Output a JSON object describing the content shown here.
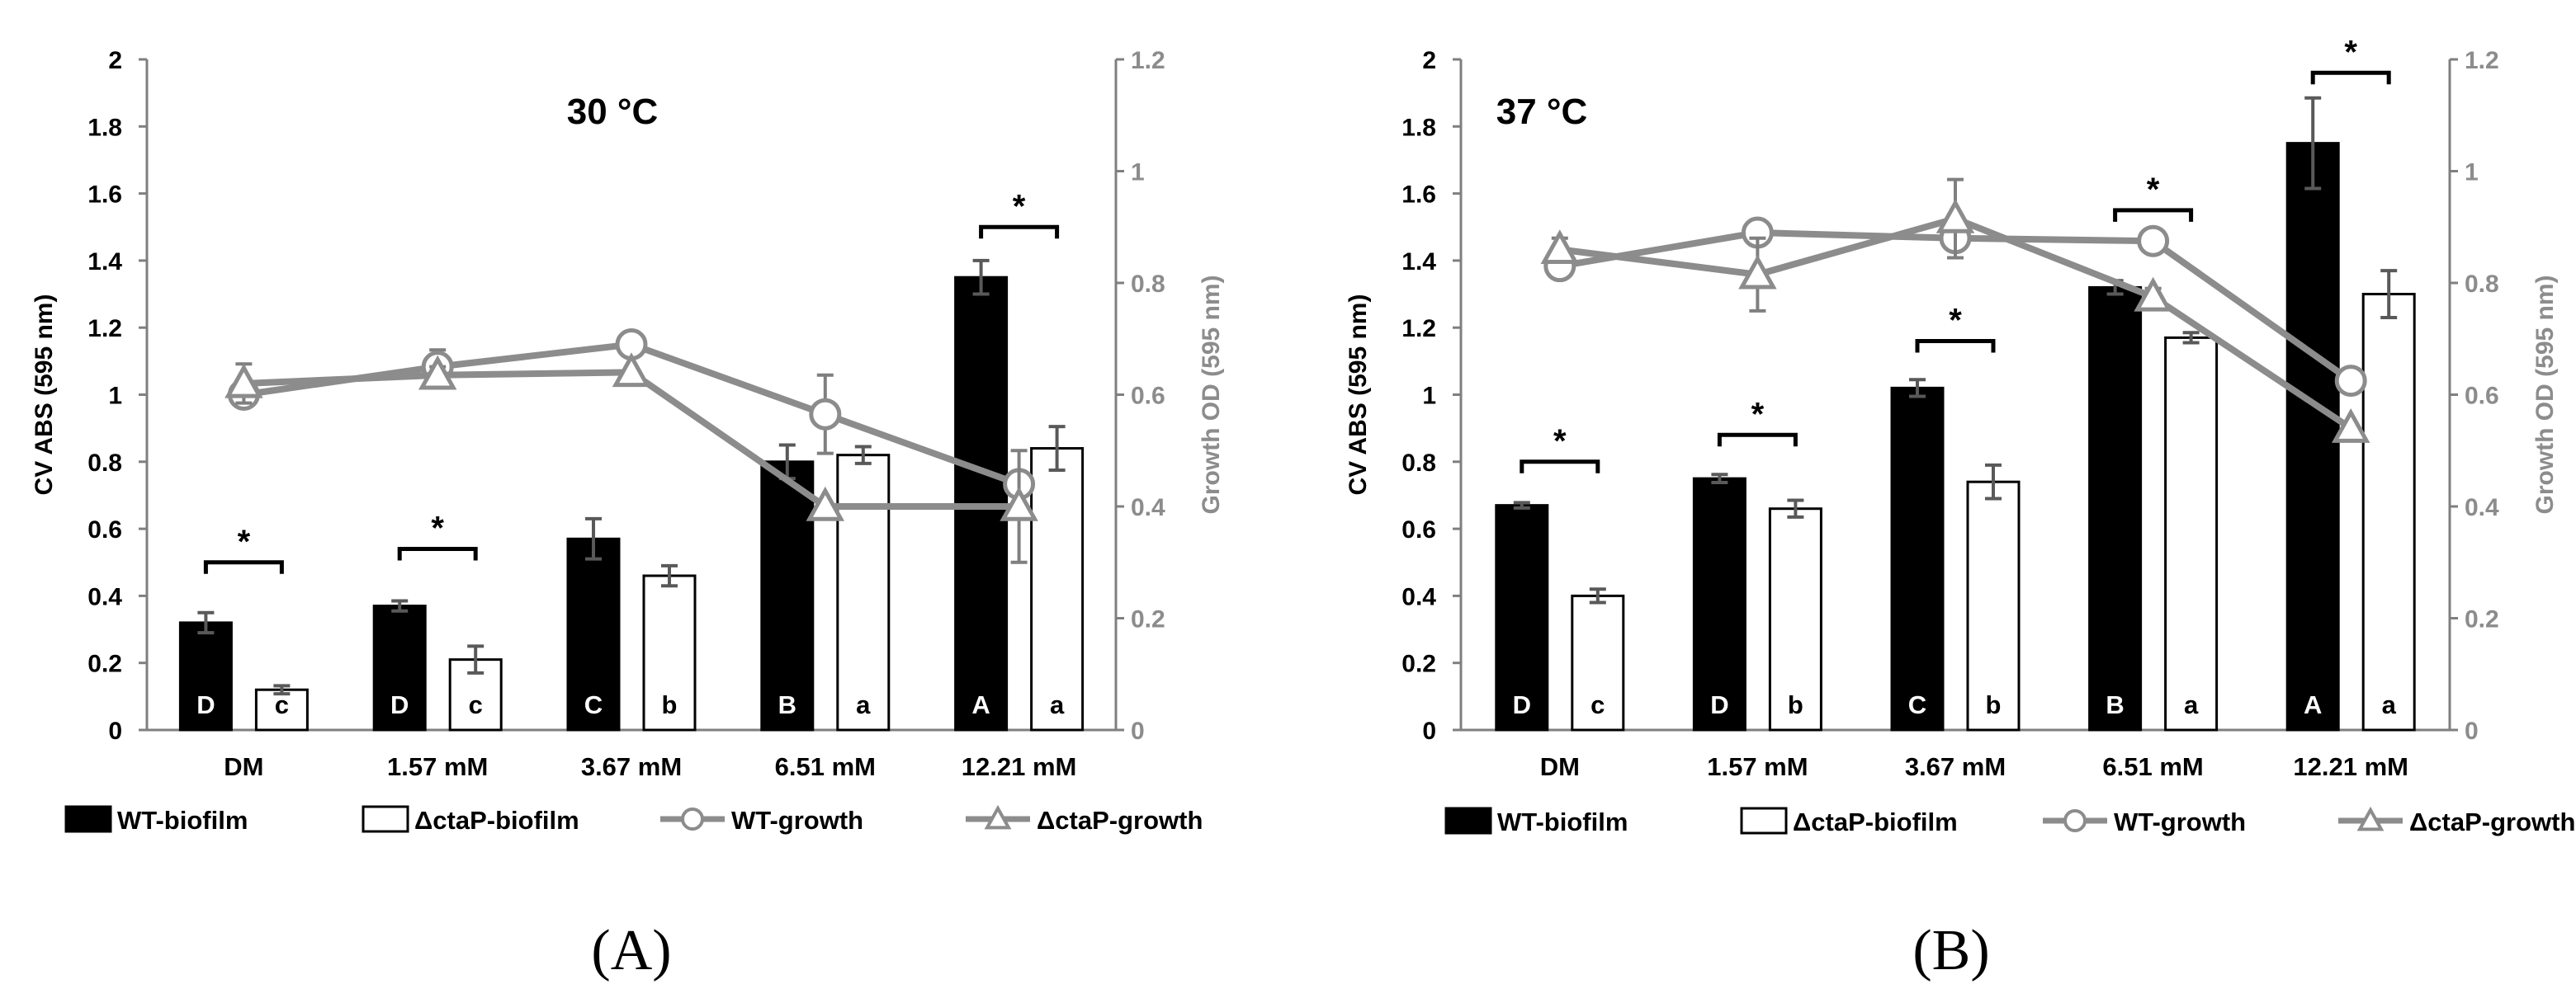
{
  "chart_data": [
    {
      "type": "bar",
      "panel_label": "(A)",
      "title": "30 °C",
      "categories": [
        "DM",
        "1.57 mM",
        "3.67 mM",
        "6.51 mM",
        "12.21 mM"
      ],
      "ylabel": "CV ABS (595 nm)",
      "ylim": [
        0,
        2
      ],
      "yticks": [
        "0",
        "0.2",
        "0.4",
        "0.6",
        "0.8",
        "1",
        "1.2",
        "1.4",
        "1.6",
        "1.8",
        "2"
      ],
      "y2label": "Growth OD (595 nm)",
      "y2lim": [
        0,
        1.2
      ],
      "y2ticks": [
        "0",
        "0.2",
        "0.4",
        "0.6",
        "0.8",
        "1",
        "1.2"
      ],
      "series": [
        {
          "name": "WT-biofilm",
          "kind": "bar",
          "axis": "left",
          "fill": "#000000",
          "values": [
            0.32,
            0.37,
            0.57,
            0.8,
            1.35
          ],
          "errors": [
            0.03,
            0.015,
            0.06,
            0.05,
            0.05
          ],
          "letters": [
            "D",
            "D",
            "C",
            "B",
            "A"
          ]
        },
        {
          "name": "ΔctaP-biofilm",
          "kind": "bar",
          "axis": "left",
          "fill": "#ffffff",
          "values": [
            0.12,
            0.21,
            0.46,
            0.82,
            0.84
          ],
          "errors": [
            0.012,
            0.04,
            0.03,
            0.025,
            0.065
          ],
          "letters": [
            "c",
            "c",
            "b",
            "a",
            "a"
          ]
        },
        {
          "name": "WT-growth",
          "kind": "line",
          "axis": "right",
          "marker": "circle",
          "values": [
            0.6,
            0.65,
            0.69,
            0.565,
            0.44
          ],
          "errors": [
            0.0,
            0.03,
            0.0,
            0.07,
            0.0
          ]
        },
        {
          "name": "ΔctaP-growth",
          "kind": "line",
          "axis": "right",
          "marker": "triangle",
          "values": [
            0.62,
            0.635,
            0.64,
            0.4,
            0.4
          ],
          "errors": [
            0.035,
            0.015,
            0.0,
            0.0,
            0.1
          ]
        }
      ],
      "significance": [
        {
          "category": "DM",
          "label": "*",
          "level": 0.5
        },
        {
          "category": "1.57 mM",
          "label": "*",
          "level": 0.54
        },
        {
          "category": "12.21 mM",
          "label": "*",
          "level": 1.5
        }
      ]
    },
    {
      "type": "bar",
      "panel_label": "(B)",
      "title": "37 °C",
      "categories": [
        "DM",
        "1.57 mM",
        "3.67 mM",
        "6.51 mM",
        "12.21 mM"
      ],
      "ylabel": "CV ABS (595 nm)",
      "ylim": [
        0,
        2
      ],
      "yticks": [
        "0",
        "0.2",
        "0.4",
        "0.6",
        "0.8",
        "1",
        "1.2",
        "1.4",
        "1.6",
        "1.8",
        "2"
      ],
      "y2label": "Growth OD (595 nm)",
      "y2lim": [
        0,
        1.2
      ],
      "y2ticks": [
        "0",
        "0.2",
        "0.4",
        "0.6",
        "0.8",
        "1",
        "1.2"
      ],
      "series": [
        {
          "name": "WT-biofilm",
          "kind": "bar",
          "axis": "left",
          "fill": "#000000",
          "values": [
            0.67,
            0.75,
            1.02,
            1.32,
            1.75
          ],
          "errors": [
            0.008,
            0.012,
            0.025,
            0.02,
            0.135
          ],
          "letters": [
            "D",
            "D",
            "C",
            "B",
            "A"
          ]
        },
        {
          "name": "ΔctaP-biofilm",
          "kind": "bar",
          "axis": "left",
          "fill": "#ffffff",
          "values": [
            0.4,
            0.66,
            0.74,
            1.17,
            1.3
          ],
          "errors": [
            0.02,
            0.025,
            0.05,
            0.015,
            0.07
          ],
          "letters": [
            "c",
            "b",
            "b",
            "a",
            "a"
          ]
        },
        {
          "name": "WT-growth",
          "kind": "line",
          "axis": "right",
          "marker": "circle",
          "values": [
            0.83,
            0.89,
            0.88,
            0.875,
            0.625
          ],
          "errors": [
            0.0,
            0.0,
            0.0,
            0.0,
            0.0
          ]
        },
        {
          "name": "ΔctaP-growth",
          "kind": "line",
          "axis": "right",
          "marker": "triangle",
          "values": [
            0.86,
            0.815,
            0.915,
            0.775,
            0.54
          ],
          "errors": [
            0.02,
            0.065,
            0.07,
            0.015,
            0.0
          ]
        }
      ],
      "significance": [
        {
          "category": "DM",
          "label": "*",
          "level": 0.8
        },
        {
          "category": "1.57 mM",
          "label": "*",
          "level": 0.88
        },
        {
          "category": "3.67 mM",
          "label": "*",
          "level": 1.16
        },
        {
          "category": "6.51 mM",
          "label": "*",
          "level": 1.55
        },
        {
          "category": "12.21 mM",
          "label": "*",
          "level": 1.96
        }
      ]
    }
  ],
  "colors": {
    "bar_edge": "#000000",
    "line": "#8c8c8c",
    "axis": "#7f7f7f",
    "right_axis_text": "#8c8c8c"
  }
}
